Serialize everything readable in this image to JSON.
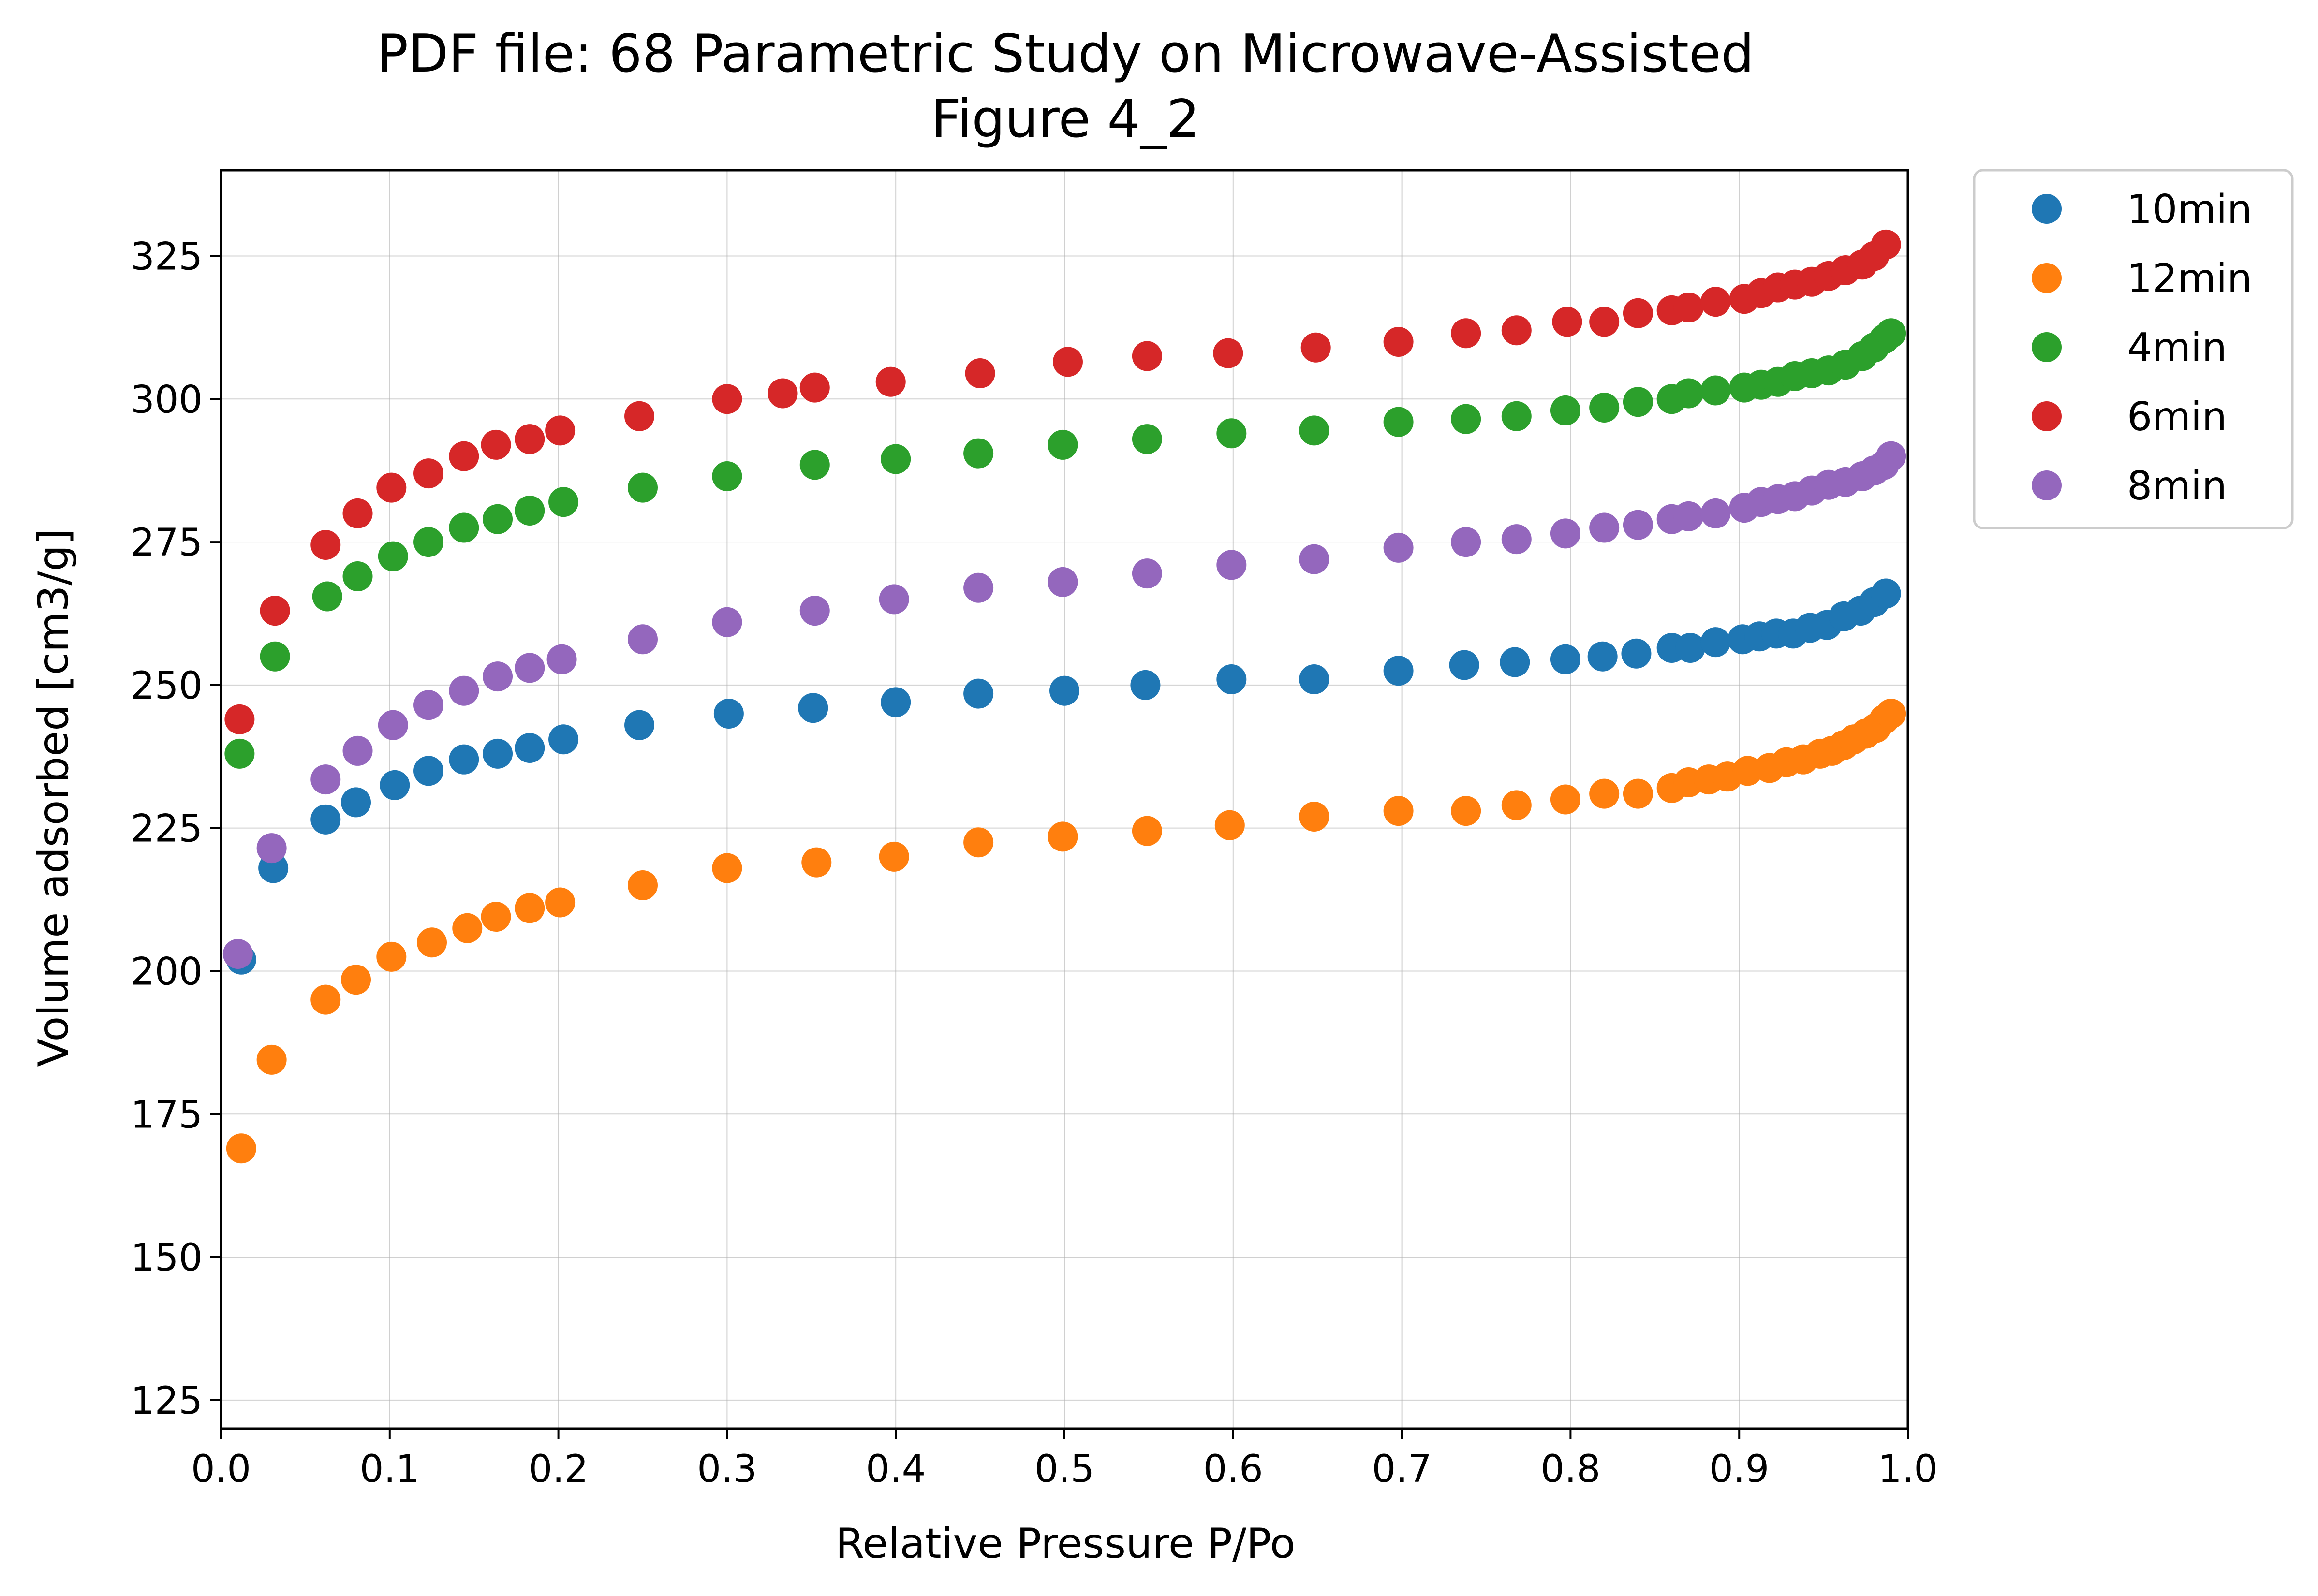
{
  "chart_data": {
    "type": "scatter",
    "title": "PDF file: 68 Parametric Study on Microwave-Assisted",
    "subtitle": "Figure 4_2",
    "xlabel": "Relative Pressure P/Po",
    "ylabel": "Volume adsorbed [cm3/g]",
    "xlim": [
      0.0,
      1.0
    ],
    "ylim": [
      120,
      340
    ],
    "xticks": [
      "0.0",
      "0.1",
      "0.2",
      "0.3",
      "0.4",
      "0.5",
      "0.6",
      "0.7",
      "0.8",
      "0.9",
      "1.0"
    ],
    "yticks": [
      "125",
      "150",
      "175",
      "200",
      "225",
      "250",
      "275",
      "300",
      "325"
    ],
    "grid": true,
    "legend_position": "outside-right-top",
    "series": [
      {
        "name": "10min",
        "color": "#1f77b4",
        "x": [
          0.012,
          0.031,
          0.062,
          0.08,
          0.103,
          0.123,
          0.144,
          0.164,
          0.183,
          0.203,
          0.248,
          0.301,
          0.351,
          0.4,
          0.449,
          0.5,
          0.548,
          0.599,
          0.648,
          0.698,
          0.737,
          0.767,
          0.797,
          0.819,
          0.839,
          0.86,
          0.871,
          0.886,
          0.902,
          0.912,
          0.922,
          0.932,
          0.942,
          0.952,
          0.962,
          0.972,
          0.98,
          0.987
        ],
        "y": [
          202,
          218,
          226.5,
          229.5,
          232.5,
          235,
          237,
          238,
          239,
          240.5,
          243,
          245,
          246,
          247,
          248.5,
          249,
          250,
          251,
          251,
          252.5,
          253.5,
          254,
          254.5,
          255,
          255.5,
          256.5,
          256.5,
          257.5,
          258,
          258.5,
          259,
          259,
          260,
          260.5,
          262,
          263,
          264.5,
          266
        ]
      },
      {
        "name": "12min",
        "color": "#ff7f0e",
        "x": [
          0.012,
          0.03,
          0.062,
          0.08,
          0.101,
          0.125,
          0.146,
          0.163,
          0.183,
          0.201,
          0.25,
          0.3,
          0.353,
          0.399,
          0.449,
          0.499,
          0.549,
          0.598,
          0.648,
          0.698,
          0.738,
          0.768,
          0.797,
          0.82,
          0.84,
          0.86,
          0.87,
          0.882,
          0.893,
          0.905,
          0.918,
          0.928,
          0.938,
          0.948,
          0.955,
          0.962,
          0.968,
          0.975,
          0.981,
          0.986,
          0.99
        ],
        "y": [
          169,
          184.5,
          195,
          198.5,
          202.5,
          205,
          207.5,
          209.5,
          211,
          212,
          215,
          218,
          219,
          220,
          222.5,
          223.5,
          224.5,
          225.5,
          227,
          228,
          228,
          229,
          230,
          231,
          231,
          232,
          233,
          233.5,
          234,
          235,
          235.5,
          236.5,
          237,
          238,
          238.5,
          239.5,
          240.5,
          241.5,
          242.5,
          244,
          245
        ]
      },
      {
        "name": "4min",
        "color": "#2ca02c",
        "x": [
          0.011,
          0.032,
          0.063,
          0.081,
          0.102,
          0.123,
          0.144,
          0.164,
          0.183,
          0.203,
          0.25,
          0.3,
          0.352,
          0.4,
          0.449,
          0.499,
          0.549,
          0.599,
          0.648,
          0.698,
          0.738,
          0.768,
          0.797,
          0.82,
          0.84,
          0.86,
          0.87,
          0.886,
          0.903,
          0.913,
          0.923,
          0.933,
          0.943,
          0.953,
          0.963,
          0.973,
          0.98,
          0.986,
          0.99
        ],
        "y": [
          238,
          255,
          265.5,
          269,
          272.5,
          275,
          277.5,
          279,
          280.5,
          282,
          284.5,
          286.5,
          288.5,
          289.5,
          290.5,
          292,
          293,
          294,
          294.5,
          296,
          296.5,
          297,
          298,
          298.5,
          299.5,
          300,
          301,
          301.5,
          302,
          302.5,
          303,
          304,
          304.5,
          305,
          306,
          307.5,
          309,
          310.5,
          311.5
        ]
      },
      {
        "name": "6min",
        "color": "#d62728",
        "x": [
          0.011,
          0.032,
          0.062,
          0.081,
          0.101,
          0.123,
          0.144,
          0.163,
          0.183,
          0.201,
          0.248,
          0.3,
          0.333,
          0.352,
          0.397,
          0.45,
          0.502,
          0.549,
          0.597,
          0.649,
          0.698,
          0.738,
          0.768,
          0.798,
          0.82,
          0.84,
          0.86,
          0.87,
          0.886,
          0.903,
          0.913,
          0.923,
          0.933,
          0.943,
          0.953,
          0.963,
          0.973,
          0.98,
          0.987
        ],
        "y": [
          244,
          263,
          274.5,
          280,
          284.5,
          287,
          290,
          292,
          293,
          294.5,
          297,
          300,
          301,
          302,
          303,
          304.5,
          306.5,
          307.5,
          308,
          309,
          310,
          311.5,
          312,
          313.5,
          313.5,
          315,
          315.5,
          316,
          317,
          317.5,
          318.5,
          319.5,
          320,
          320.5,
          321.5,
          322.5,
          323.5,
          325,
          327
        ]
      },
      {
        "name": "8min",
        "color": "#9467bd",
        "x": [
          0.01,
          0.03,
          0.062,
          0.081,
          0.102,
          0.123,
          0.144,
          0.164,
          0.183,
          0.202,
          0.25,
          0.3,
          0.352,
          0.399,
          0.449,
          0.499,
          0.549,
          0.599,
          0.648,
          0.698,
          0.738,
          0.768,
          0.797,
          0.82,
          0.84,
          0.86,
          0.87,
          0.886,
          0.903,
          0.913,
          0.923,
          0.933,
          0.943,
          0.953,
          0.963,
          0.973,
          0.98,
          0.986,
          0.99
        ],
        "y": [
          203,
          221.5,
          233.5,
          238.5,
          243,
          246.5,
          249,
          251.5,
          253,
          254.5,
          258,
          261,
          263,
          265,
          267,
          268,
          269.5,
          271,
          272,
          274,
          275,
          275.5,
          276.5,
          277.5,
          278,
          279,
          279.5,
          280,
          281,
          282,
          282.5,
          283,
          284,
          285,
          285.5,
          286.5,
          287.5,
          288.5,
          290
        ]
      }
    ]
  }
}
